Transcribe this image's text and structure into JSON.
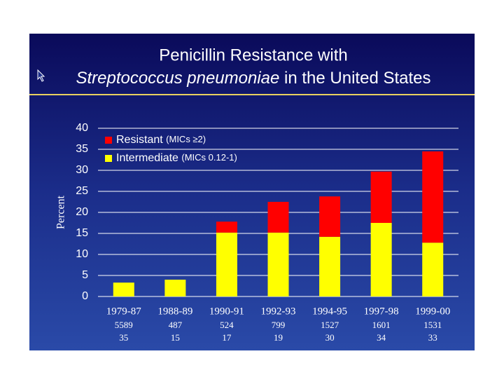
{
  "chart_data": {
    "type": "bar",
    "stacked": true,
    "title_line1": "Penicillin Resistance with",
    "title_line2_italic": "Streptococcus pneumoniae",
    "title_line2_rest": "in the United States",
    "y_label": "Percent",
    "categories": [
      "1979-87",
      "1988-89",
      "1990-91",
      "1992-93",
      "1994-95",
      "1997-98",
      "1999-00"
    ],
    "row2": [
      "5589",
      "487",
      "524",
      "799",
      "1527",
      "1601",
      "1531"
    ],
    "row3": [
      "35",
      "15",
      "17",
      "19",
      "30",
      "34",
      "33"
    ],
    "series": [
      {
        "name": "Intermediate",
        "note": "(MICs 0.12-1)",
        "color": "#ffff00",
        "values": [
          3.3,
          4.0,
          15.2,
          15.2,
          14.2,
          17.5,
          12.8
        ]
      },
      {
        "name": "Resistant",
        "note": "(MICs ≥2)",
        "color": "#ff0000",
        "values": [
          0,
          0,
          2.6,
          7.3,
          9.6,
          12.2,
          21.7
        ]
      }
    ],
    "ylim": [
      0,
      40
    ],
    "yticks": [
      0,
      5,
      10,
      15,
      20,
      25,
      30,
      35,
      40
    ],
    "grid": true
  }
}
